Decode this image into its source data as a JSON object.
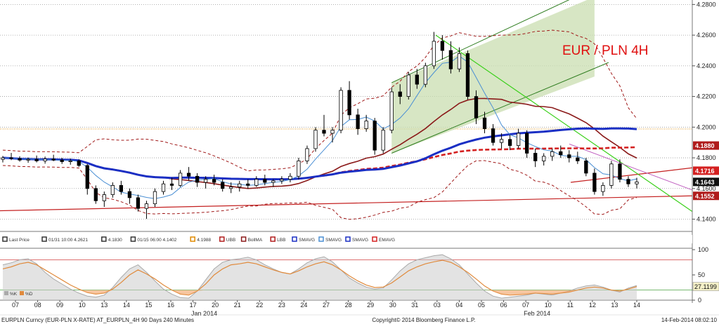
{
  "chart_data": {
    "type": "candlestick",
    "title": "EUR / PLN 4H",
    "title_color": "#e01010",
    "y_ticks": [
      "4.2800",
      "4.2600",
      "4.2400",
      "4.2200",
      "4.2000",
      "4.1800",
      "4.1600",
      "4.1400"
    ],
    "ylim": [
      4.132,
      4.282
    ],
    "x_ticks": [
      "07",
      "08",
      "09",
      "10",
      "13",
      "14",
      "15",
      "16",
      "17",
      "20",
      "21",
      "22",
      "23",
      "24",
      "27",
      "28",
      "29",
      "30",
      "31",
      "03",
      "04",
      "05",
      "06",
      "07",
      "10",
      "11",
      "12",
      "13",
      "14"
    ],
    "month_labels": [
      {
        "text": "Jan 2014",
        "at": 8
      },
      {
        "text": "Feb 2014",
        "at": 23
      }
    ],
    "price_tags": [
      {
        "value": "4.1880",
        "price": 4.188,
        "color": "#b01c1c"
      },
      {
        "value": "4.1716",
        "price": 4.1716,
        "color": "#d42020"
      },
      {
        "value": "4.1643",
        "price": 4.1643,
        "color": "#111111"
      },
      {
        "value": "4.1552",
        "price": 4.1552,
        "color": "#b01c1c"
      }
    ],
    "legend": [
      {
        "label": "Last Price",
        "color": "#333333"
      },
      {
        "label": "01/31 10:00 4.2621",
        "color": "#333333"
      },
      {
        "label": "4.1830",
        "color": "#333333"
      },
      {
        "label": "01/15 06:00 4.1402",
        "color": "#333333"
      },
      {
        "label": "4.1988",
        "color": "#e08a00"
      },
      {
        "label": "UBB",
        "color": "#b01c1c"
      },
      {
        "label": "BollMA",
        "color": "#8b1a1a"
      },
      {
        "label": "LBB",
        "color": "#b01c1c"
      },
      {
        "label": "SMAVG",
        "color": "#1a2fc4"
      },
      {
        "label": "SMAVG",
        "color": "#4a8fd4"
      },
      {
        "label": "SMAVG",
        "color": "#1a2fc4"
      },
      {
        "label": "EMAVG",
        "color": "#d42020"
      }
    ],
    "candles": [
      [
        4.179,
        4.1812,
        4.177,
        4.18
      ],
      [
        4.18,
        4.1832,
        4.1785,
        4.1795
      ],
      [
        4.1795,
        4.181,
        4.1775,
        4.1785
      ],
      [
        4.1785,
        4.1802,
        4.1768,
        4.179
      ],
      [
        4.179,
        4.1815,
        4.177,
        4.178
      ],
      [
        4.178,
        4.1808,
        4.1762,
        4.1792
      ],
      [
        4.1792,
        4.182,
        4.1778,
        4.1785
      ],
      [
        4.1785,
        4.18,
        4.176,
        4.1775
      ],
      [
        4.1775,
        4.1795,
        4.1755,
        4.178
      ],
      [
        4.178,
        4.179,
        4.174,
        4.175
      ],
      [
        4.175,
        4.176,
        4.156,
        4.16
      ],
      [
        4.16,
        4.162,
        4.15,
        4.152
      ],
      [
        4.152,
        4.158,
        4.148,
        4.156
      ],
      [
        4.156,
        4.164,
        4.154,
        4.162
      ],
      [
        4.162,
        4.165,
        4.156,
        4.158
      ],
      [
        4.158,
        4.16,
        4.15,
        4.154
      ],
      [
        4.154,
        4.156,
        4.145,
        4.147
      ],
      [
        4.147,
        4.152,
        4.1402,
        4.15
      ],
      [
        4.15,
        4.16,
        4.148,
        4.158
      ],
      [
        4.158,
        4.165,
        4.156,
        4.163
      ],
      [
        4.163,
        4.167,
        4.159,
        4.162
      ],
      [
        4.162,
        4.172,
        4.161,
        4.17
      ],
      [
        4.17,
        4.174,
        4.165,
        4.168
      ],
      [
        4.168,
        4.17,
        4.161,
        4.164
      ],
      [
        4.164,
        4.168,
        4.16,
        4.166
      ],
      [
        4.166,
        4.169,
        4.162,
        4.164
      ],
      [
        4.164,
        4.166,
        4.158,
        4.16
      ],
      [
        4.16,
        4.164,
        4.157,
        4.161
      ],
      [
        4.161,
        4.165,
        4.158,
        4.163
      ],
      [
        4.163,
        4.166,
        4.16,
        4.162
      ],
      [
        4.162,
        4.168,
        4.161,
        4.166
      ],
      [
        4.166,
        4.169,
        4.162,
        4.164
      ],
      [
        4.164,
        4.166,
        4.161,
        4.165
      ],
      [
        4.165,
        4.168,
        4.163,
        4.166
      ],
      [
        4.166,
        4.17,
        4.164,
        4.168
      ],
      [
        4.168,
        4.18,
        4.166,
        4.178
      ],
      [
        4.178,
        4.188,
        4.176,
        4.186
      ],
      [
        4.186,
        4.2,
        4.184,
        4.198
      ],
      [
        4.198,
        4.208,
        4.194,
        4.196
      ],
      [
        4.196,
        4.2,
        4.19,
        4.198
      ],
      [
        4.198,
        4.226,
        4.196,
        4.224
      ],
      [
        4.224,
        4.23,
        4.205,
        4.208
      ],
      [
        4.208,
        4.212,
        4.195,
        4.199
      ],
      [
        4.199,
        4.208,
        4.197,
        4.204
      ],
      [
        4.204,
        4.206,
        4.182,
        4.185
      ],
      [
        4.185,
        4.2,
        4.183,
        4.198
      ],
      [
        4.198,
        4.226,
        4.196,
        4.223
      ],
      [
        4.223,
        4.228,
        4.215,
        4.22
      ],
      [
        4.22,
        4.236,
        4.218,
        4.234
      ],
      [
        4.234,
        4.238,
        4.225,
        4.228
      ],
      [
        4.228,
        4.242,
        4.226,
        4.24
      ],
      [
        4.24,
        4.2621,
        4.238,
        4.256
      ],
      [
        4.256,
        4.26,
        4.244,
        4.25
      ],
      [
        4.25,
        4.256,
        4.235,
        4.238
      ],
      [
        4.238,
        4.252,
        4.236,
        4.248
      ],
      [
        4.248,
        4.25,
        4.218,
        4.22
      ],
      [
        4.22,
        4.224,
        4.202,
        4.206
      ],
      [
        4.206,
        4.21,
        4.196,
        4.199
      ],
      [
        4.199,
        4.202,
        4.188,
        4.19
      ],
      [
        4.19,
        4.196,
        4.186,
        4.192
      ],
      [
        4.192,
        4.195,
        4.185,
        4.188
      ],
      [
        4.188,
        4.199,
        4.186,
        4.196
      ],
      [
        4.196,
        4.198,
        4.18,
        4.183
      ],
      [
        4.183,
        4.186,
        4.174,
        4.178
      ],
      [
        4.178,
        4.183,
        4.175,
        4.181
      ],
      [
        4.181,
        4.186,
        4.178,
        4.184
      ],
      [
        4.184,
        4.188,
        4.18,
        4.182
      ],
      [
        4.182,
        4.185,
        4.177,
        4.18
      ],
      [
        4.18,
        4.184,
        4.176,
        4.178
      ],
      [
        4.178,
        4.18,
        4.168,
        4.17
      ],
      [
        4.17,
        4.173,
        4.156,
        4.158
      ],
      [
        4.158,
        4.164,
        4.1552,
        4.162
      ],
      [
        4.162,
        4.178,
        4.16,
        4.176
      ],
      [
        4.176,
        4.179,
        4.164,
        4.166
      ],
      [
        4.166,
        4.168,
        4.161,
        4.163
      ],
      [
        4.163,
        4.167,
        4.16,
        4.1643
      ]
    ],
    "sub_panel": {
      "type": "stochastic",
      "y_ticks": [
        "100",
        "50",
        "0"
      ],
      "levels": [
        80,
        20
      ],
      "legend": [
        {
          "label": "%K",
          "color": "#aaaaaa"
        },
        {
          "label": "%D",
          "color": "#e08a3c"
        }
      ],
      "last_value": "27.1199",
      "pct_d": [
        62,
        66,
        72,
        75,
        70,
        60,
        50,
        40,
        30,
        22,
        15,
        12,
        14,
        22,
        35,
        50,
        60,
        52,
        42,
        30,
        20,
        12,
        10,
        18,
        32,
        50,
        62,
        70,
        72,
        75,
        72,
        66,
        60,
        55,
        52,
        58,
        66,
        72,
        76,
        70,
        60,
        48,
        38,
        30,
        25,
        26,
        34,
        46,
        58,
        66,
        72,
        76,
        79,
        75,
        66,
        55,
        42,
        28,
        18,
        12,
        10,
        11,
        12,
        14,
        13,
        12,
        14,
        16,
        20,
        24,
        26,
        24,
        20,
        18,
        22,
        27
      ],
      "pct_k": [
        70,
        74,
        80,
        82,
        72,
        55,
        42,
        32,
        22,
        14,
        8,
        6,
        10,
        25,
        45,
        62,
        70,
        55,
        38,
        22,
        12,
        5,
        4,
        18,
        40,
        62,
        75,
        80,
        82,
        85,
        80,
        70,
        62,
        55,
        52,
        62,
        74,
        82,
        86,
        76,
        60,
        44,
        34,
        26,
        22,
        24,
        40,
        58,
        72,
        80,
        84,
        88,
        90,
        82,
        70,
        52,
        34,
        18,
        8,
        4,
        6,
        8,
        10,
        14,
        12,
        10,
        14,
        18,
        24,
        28,
        30,
        26,
        20,
        16,
        24,
        29
      ]
    },
    "footer": {
      "left": "EURPLN Curncy (EUR-PLN X-RATE) AT_EURPLN_4H 90 Days 240 Minutes",
      "center": "Copyright© 2014 Bloomberg Finance L.P.",
      "right": "14-Feb-2014 08:02:10"
    },
    "colors": {
      "up": "#000000",
      "down": "#000000",
      "grid": "#999999",
      "channel_fill": "#c9deb0",
      "channel_edge": "#2e7d1f"
    }
  }
}
